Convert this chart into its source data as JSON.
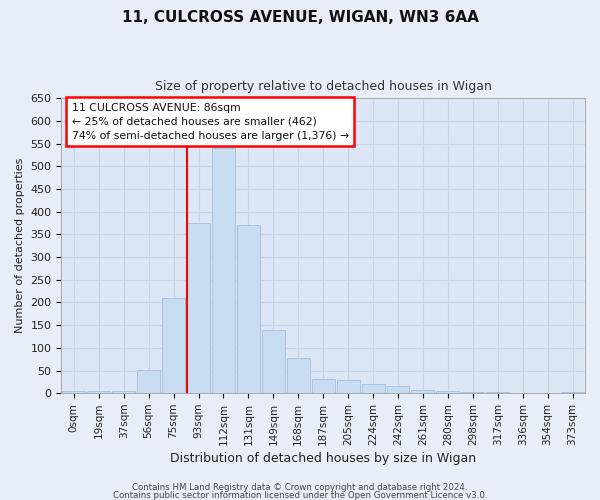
{
  "title": "11, CULCROSS AVENUE, WIGAN, WN3 6AA",
  "subtitle": "Size of property relative to detached houses in Wigan",
  "xlabel": "Distribution of detached houses by size in Wigan",
  "ylabel": "Number of detached properties",
  "bar_labels": [
    "0sqm",
    "19sqm",
    "37sqm",
    "56sqm",
    "75sqm",
    "93sqm",
    "112sqm",
    "131sqm",
    "149sqm",
    "168sqm",
    "187sqm",
    "205sqm",
    "224sqm",
    "242sqm",
    "261sqm",
    "280sqm",
    "298sqm",
    "317sqm",
    "336sqm",
    "354sqm",
    "373sqm"
  ],
  "bar_values": [
    5,
    4,
    4,
    52,
    210,
    375,
    540,
    370,
    140,
    77,
    32,
    30,
    20,
    15,
    8,
    5,
    3,
    2,
    1,
    1,
    2
  ],
  "bar_color": "#c9ddf2",
  "bar_edge_color": "#a8c4e0",
  "red_line_index": 5,
  "annotation_title": "11 CULCROSS AVENUE: 86sqm",
  "annotation_line1": "← 25% of detached houses are smaller (462)",
  "annotation_line2": "74% of semi-detached houses are larger (1,376) →",
  "ylim": [
    0,
    650
  ],
  "yticks": [
    0,
    50,
    100,
    150,
    200,
    250,
    300,
    350,
    400,
    450,
    500,
    550,
    600,
    650
  ],
  "footer1": "Contains HM Land Registry data © Crown copyright and database right 2024.",
  "footer2": "Contains public sector information licensed under the Open Government Licence v3.0.",
  "fig_bg_color": "#e8eef7",
  "plot_bg_color": "#dce6f5",
  "grid_color": "#c8d4e8",
  "title_fontsize": 11,
  "subtitle_fontsize": 9,
  "xlabel_fontsize": 9,
  "ylabel_fontsize": 8,
  "tick_fontsize": 7.5
}
